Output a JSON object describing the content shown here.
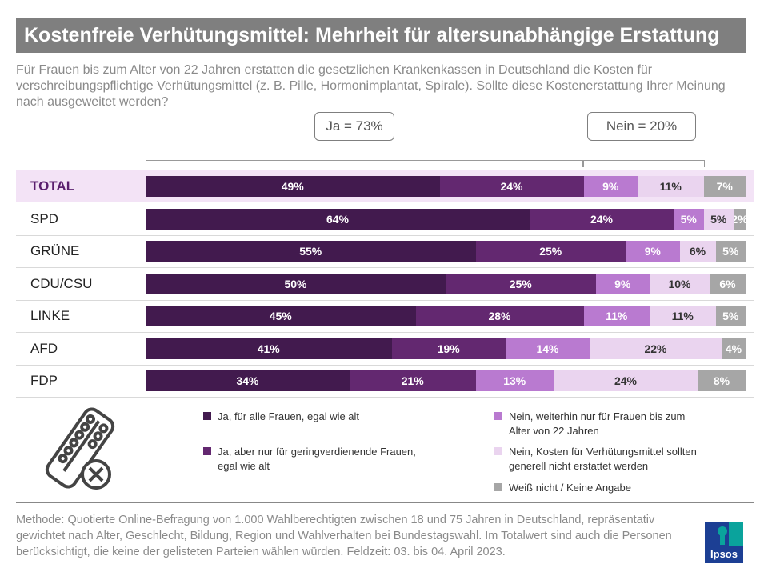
{
  "title": "Kostenfreie Verhütungsmittel: Mehrheit für altersunabhängige Erstattung",
  "subtitle": "Für Frauen bis zum Alter von 22 Jahren erstatten die gesetzlichen Krankenkassen in Deutschland die Kosten für verschreibungspflichtige Verhütungsmittel (z. B. Pille, Hormonimplantat, Spirale). Sollte diese Kostenerstattung Ihrer Meinung nach ausgeweitet werden?",
  "summary": {
    "ja": "Ja = 73%",
    "nein": "Nein = 20%"
  },
  "chart_data": {
    "type": "bar",
    "orientation": "horizontal-stacked-100",
    "categories": [
      "TOTAL",
      "SPD",
      "GRÜNE",
      "CDU/CSU",
      "LINKE",
      "AFD",
      "FDP"
    ],
    "series": [
      {
        "name": "Ja, für alle Frauen, egal wie alt",
        "color": "#421a4e",
        "values": [
          49,
          64,
          55,
          50,
          45,
          41,
          34
        ]
      },
      {
        "name": "Ja, aber nur für geringverdienende Frauen, egal wie alt",
        "color": "#632870",
        "values": [
          24,
          24,
          25,
          25,
          28,
          19,
          21
        ]
      },
      {
        "name": "Nein, weiterhin nur für Frauen bis zum Alter von 22 Jahren",
        "color": "#b97ad0",
        "values": [
          9,
          5,
          9,
          9,
          11,
          14,
          13
        ]
      },
      {
        "name": "Nein, Kosten für Verhütungsmittel sollten generell nicht erstattet werden",
        "color": "#ead4ef",
        "values": [
          11,
          5,
          6,
          10,
          11,
          22,
          24
        ]
      },
      {
        "name": "Weiß nicht / Keine Angabe",
        "color": "#a6a6a6",
        "values": [
          7,
          2,
          5,
          6,
          5,
          4,
          8
        ]
      }
    ],
    "unit": "%"
  },
  "footer": "Methode: Quotierte Online-Befragung von 1.000 Wahlberechtigten zwischen 18 und 75 Jahren in Deutschland, repräsentativ gewichtet nach Alter, Geschlecht, Bildung, Region und Wahlverhalten bei Bundestagswahl. Im Totalwert sind auch die Personen berücksichtigt, die keine der gelisteten Parteien wählen würden. Feldzeit: 03. bis 04. April 2023.",
  "logo": "Ipsos"
}
